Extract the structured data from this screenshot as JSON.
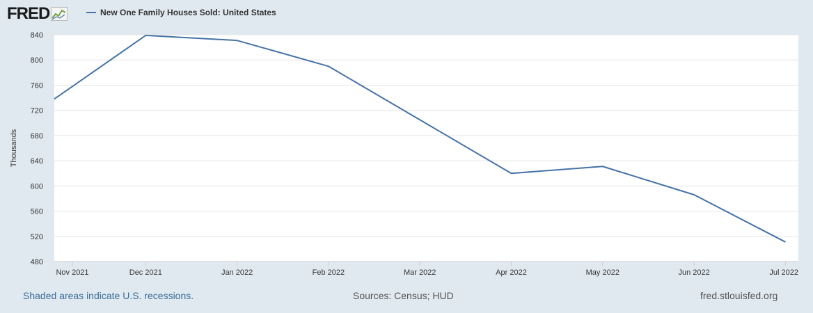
{
  "brand": {
    "logo_text": "FRED",
    "logo_icon": "chart-trend-icon"
  },
  "legend": {
    "label": "New One Family Houses Sold: United States",
    "color": "#4572a7"
  },
  "footer": {
    "recession_note": "Shaded areas indicate U.S. recessions.",
    "sources": "Sources: Census; HUD",
    "site": "fred.stlouisfed.org"
  },
  "colors": {
    "background": "#e1e9f0",
    "plot": "#ffffff",
    "grid": "#e6e6e6",
    "line": "#4572a7",
    "link": "#3a6d9a"
  },
  "chart_data": {
    "type": "line",
    "title": "",
    "xlabel": "",
    "ylabel": "Thousands",
    "categories": [
      "Nov 2021",
      "Dec 2021",
      "Jan 2022",
      "Feb 2022",
      "Mar 2022",
      "Apr 2022",
      "May 2022",
      "Jun 2022",
      "Jul 2022"
    ],
    "series": [
      {
        "name": "New One Family Houses Sold: United States",
        "values": [
          738,
          839,
          831,
          790,
          705,
          620,
          631,
          586,
          511
        ]
      }
    ],
    "yticks": [
      480,
      520,
      560,
      600,
      640,
      680,
      720,
      760,
      800,
      840
    ],
    "ylim": [
      480,
      840
    ],
    "grid": true,
    "legend_position": "top-left"
  }
}
